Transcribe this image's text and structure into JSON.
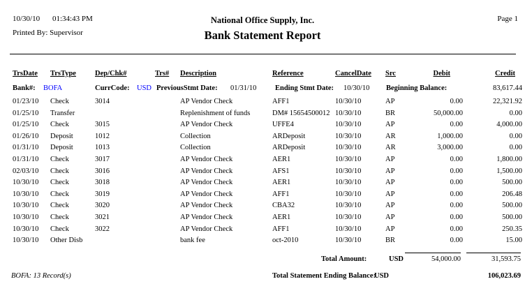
{
  "report": {
    "print_date": "10/30/10",
    "print_time": "01:34:43 PM",
    "printed_by_label": "Printed By:",
    "printed_by": "Supervisor",
    "company": "National Office Supply, Inc.",
    "title": "Bank Statement Report",
    "page": "Page 1"
  },
  "columns": [
    "TrsDate",
    "TrsType",
    "Dep/Chk#",
    "Trs#",
    "Description",
    "Reference",
    "CancelDate",
    "Src",
    "Debit",
    "Credit"
  ],
  "bank_info": {
    "bank_label": "Bank#:",
    "bank_value": "BOFA",
    "curr_label": "CurrCode:",
    "curr_value": "USD",
    "prev_stmt_label": "PreviousStmt Date:",
    "prev_stmt_date": "01/31/10",
    "ending_stmt_label": "Ending Stmt Date:",
    "ending_stmt_date": "10/30/10",
    "beginning_balance_label": "Beginning Balance:",
    "beginning_balance": "83,617.44"
  },
  "rows": [
    {
      "date": "01/23/10",
      "type": "Check",
      "dep_chk": "3014",
      "trs": "",
      "description": "AP Vendor Check",
      "reference": "AFF1",
      "cancel_date": "10/30/10",
      "src": "AP",
      "debit": "0.00",
      "credit": "22,321.92"
    },
    {
      "date": "01/25/10",
      "type": "Transfer",
      "dep_chk": "",
      "trs": "",
      "description": "Replenishment of funds",
      "reference": "DM# 15654500012",
      "cancel_date": "10/30/10",
      "src": "BR",
      "debit": "50,000.00",
      "credit": "0.00"
    },
    {
      "date": "01/25/10",
      "type": "Check",
      "dep_chk": "3015",
      "trs": "",
      "description": "AP Vendor Check",
      "reference": "UFFE4",
      "cancel_date": "10/30/10",
      "src": "AP",
      "debit": "0.00",
      "credit": "4,000.00"
    },
    {
      "date": "01/26/10",
      "type": "Deposit",
      "dep_chk": "1012",
      "trs": "",
      "description": "Collection",
      "reference": "ARDeposit",
      "cancel_date": "10/30/10",
      "src": "AR",
      "debit": "1,000.00",
      "credit": "0.00"
    },
    {
      "date": "01/31/10",
      "type": "Deposit",
      "dep_chk": "1013",
      "trs": "",
      "description": "Collection",
      "reference": "ARDeposit",
      "cancel_date": "10/30/10",
      "src": "AR",
      "debit": "3,000.00",
      "credit": "0.00"
    },
    {
      "date": "01/31/10",
      "type": "Check",
      "dep_chk": "3017",
      "trs": "",
      "description": "AP Vendor Check",
      "reference": "AER1",
      "cancel_date": "10/30/10",
      "src": "AP",
      "debit": "0.00",
      "credit": "1,800.00"
    },
    {
      "date": "02/03/10",
      "type": "Check",
      "dep_chk": "3016",
      "trs": "",
      "description": "AP Vendor Check",
      "reference": "AFS1",
      "cancel_date": "10/30/10",
      "src": "AP",
      "debit": "0.00",
      "credit": "1,500.00"
    },
    {
      "date": "10/30/10",
      "type": "Check",
      "dep_chk": "3018",
      "trs": "",
      "description": "AP Vendor Check",
      "reference": "AER1",
      "cancel_date": "10/30/10",
      "src": "AP",
      "debit": "0.00",
      "credit": "500.00"
    },
    {
      "date": "10/30/10",
      "type": "Check",
      "dep_chk": "3019",
      "trs": "",
      "description": "AP Vendor Check",
      "reference": "AFF1",
      "cancel_date": "10/30/10",
      "src": "AP",
      "debit": "0.00",
      "credit": "206.48"
    },
    {
      "date": "10/30/10",
      "type": "Check",
      "dep_chk": "3020",
      "trs": "",
      "description": "AP Vendor Check",
      "reference": "CBA32",
      "cancel_date": "10/30/10",
      "src": "AP",
      "debit": "0.00",
      "credit": "500.00"
    },
    {
      "date": "10/30/10",
      "type": "Check",
      "dep_chk": "3021",
      "trs": "",
      "description": "AP Vendor Check",
      "reference": "AER1",
      "cancel_date": "10/30/10",
      "src": "AP",
      "debit": "0.00",
      "credit": "500.00"
    },
    {
      "date": "10/30/10",
      "type": "Check",
      "dep_chk": "3022",
      "trs": "",
      "description": "AP Vendor Check",
      "reference": "AFF1",
      "cancel_date": "10/30/10",
      "src": "AP",
      "debit": "0.00",
      "credit": "250.35"
    },
    {
      "date": "10/30/10",
      "type": "Other Disb",
      "dep_chk": "",
      "trs": "",
      "description": "bank fee",
      "reference": "oct-2010",
      "cancel_date": "10/30/10",
      "src": "BR",
      "debit": "0.00",
      "credit": "15.00"
    }
  ],
  "totals": {
    "total_amount_label": "Total Amount:",
    "total_amount_currency": "USD",
    "total_debit": "54,000.00",
    "total_credit": "31,593.75",
    "ending_balance_label": "Total Statement Ending Balance:",
    "ending_balance_currency": "USD",
    "ending_balance": "106,023.69",
    "record_count": "BOFA: 13 Record(s)"
  },
  "colors": {
    "link_blue": "#0000ff",
    "text": "#000000",
    "background": "#ffffff"
  }
}
